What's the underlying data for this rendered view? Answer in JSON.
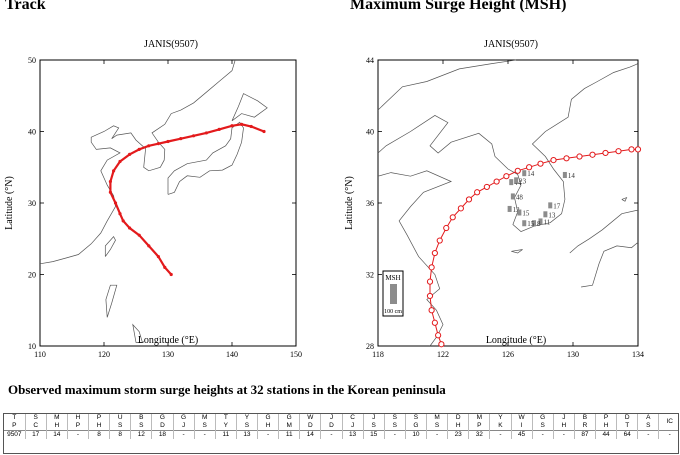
{
  "left_panel": {
    "heading": "Track",
    "inner_title": "JANIS(9507)",
    "xlabel": "Longitude (°E)",
    "ylabel": "Latitude (°N)",
    "xticks": [
      "110",
      "120",
      "130",
      "140",
      "150"
    ],
    "yticks": [
      "10",
      "20",
      "30",
      "40",
      "50"
    ]
  },
  "right_panel": {
    "heading": "Maximum Surge Height (MSH)",
    "inner_title": "JANIS(9507)",
    "xlabel": "Longitude (°E)",
    "ylabel": "Latitude (°N)",
    "xticks": [
      "118",
      "122",
      "126",
      "130",
      "134"
    ],
    "yticks": [
      "28",
      "32",
      "36",
      "40",
      "44"
    ],
    "legend_title": "MSH",
    "legend_scale": "100 cm"
  },
  "table_title": "Observed maximum storm surge heights at 32 stations in the Korean peninsula",
  "colors": {
    "track": "#e31a1c",
    "land_outline": "#555555",
    "surge_bar": "#8c8c8c"
  },
  "chart_data": [
    {
      "type": "line",
      "title": "JANIS(9507)",
      "xlabel": "Longitude (°E)",
      "ylabel": "Latitude (°N)",
      "xlim": [
        110,
        150
      ],
      "ylim": [
        10,
        50
      ],
      "series": [
        {
          "x": [
            130.5,
            129.5,
            128.5,
            127.0,
            125.5,
            124.0,
            123.0,
            122.5,
            121.8,
            121.0,
            121.0,
            121.5,
            122.5,
            124.0,
            125.5,
            127.0,
            128.5,
            130.0,
            132.0,
            134.0,
            136.0,
            138.0,
            140.0,
            141.5,
            143.0,
            145.0
          ],
          "y": [
            20.0,
            21.0,
            22.5,
            24.0,
            25.5,
            26.5,
            27.5,
            28.5,
            30.0,
            31.5,
            33.0,
            34.5,
            35.8,
            36.8,
            37.5,
            38.0,
            38.3,
            38.6,
            39.0,
            39.4,
            39.8,
            40.3,
            40.8,
            41.0,
            40.7,
            40.0
          ]
        }
      ]
    },
    {
      "type": "line",
      "title": "JANIS(9507)",
      "xlabel": "Longitude (°E)",
      "ylabel": "Latitude (°N)",
      "xlim": [
        118,
        134
      ],
      "ylim": [
        28,
        44
      ],
      "series": [
        {
          "x": [
            121.9,
            121.7,
            121.5,
            121.3,
            121.2,
            121.2,
            121.3,
            121.5,
            121.8,
            122.2,
            122.6,
            123.1,
            123.6,
            124.1,
            124.7,
            125.3,
            125.9,
            126.6,
            127.3,
            128.0,
            128.8,
            129.6,
            130.4,
            131.2,
            132.0,
            132.8,
            133.6,
            134.0
          ],
          "y": [
            28.1,
            28.6,
            29.3,
            30.0,
            30.8,
            31.6,
            32.4,
            33.2,
            33.9,
            34.6,
            35.2,
            35.7,
            36.2,
            36.6,
            36.9,
            37.2,
            37.5,
            37.8,
            38.0,
            38.2,
            38.4,
            38.5,
            38.6,
            38.7,
            38.8,
            38.9,
            39.0,
            39.0
          ]
        }
      ],
      "surge_labels": [
        {
          "text": "44",
          "x": 126.2,
          "y": 37.0
        },
        {
          "text": "14",
          "x": 127.0,
          "y": 37.5
        },
        {
          "text": "23",
          "x": 126.5,
          "y": 37.1
        },
        {
          "text": "48",
          "x": 126.3,
          "y": 36.2
        },
        {
          "text": "12",
          "x": 126.1,
          "y": 35.5
        },
        {
          "text": "15",
          "x": 126.7,
          "y": 35.3
        },
        {
          "text": "17",
          "x": 128.6,
          "y": 35.7
        },
        {
          "text": "13",
          "x": 128.3,
          "y": 35.2
        },
        {
          "text": "11",
          "x": 128.0,
          "y": 34.8
        },
        {
          "text": "8",
          "x": 127.6,
          "y": 34.7
        },
        {
          "text": "15",
          "x": 127.0,
          "y": 34.7
        },
        {
          "text": "14",
          "x": 129.5,
          "y": 37.4
        }
      ]
    },
    {
      "type": "table",
      "columns": [
        [
          "T",
          "P"
        ],
        [
          "S",
          "C"
        ],
        [
          "M",
          "H"
        ],
        [
          "H",
          "P"
        ],
        [
          "P",
          "H"
        ],
        [
          "U",
          "S"
        ],
        [
          "B",
          "S"
        ],
        [
          "G",
          "D"
        ],
        [
          "G",
          "J"
        ],
        [
          "M",
          "S"
        ],
        [
          "T",
          "Y"
        ],
        [
          "Y",
          "S"
        ],
        [
          "G",
          "H"
        ],
        [
          "G",
          "M"
        ],
        [
          "W",
          "D"
        ],
        [
          "J",
          "D"
        ],
        [
          "C",
          "J"
        ],
        [
          "J",
          "S"
        ],
        [
          "S",
          "S"
        ],
        [
          "S",
          "G"
        ],
        [
          "M",
          "S"
        ],
        [
          "D",
          "H"
        ],
        [
          "M",
          "P"
        ],
        [
          "Y",
          "K"
        ],
        [
          "W",
          "I"
        ],
        [
          "G",
          "S"
        ],
        [
          "J",
          "H"
        ],
        [
          "B",
          "R"
        ],
        [
          "P",
          "H"
        ],
        [
          "D",
          "T"
        ],
        [
          "A",
          "S"
        ],
        [
          "IC"
        ]
      ],
      "values": [
        "9507",
        "17",
        "14",
        "-",
        "8",
        "8",
        "12",
        "18",
        "-",
        "-",
        "11",
        "13",
        "-",
        "11",
        "14",
        "-",
        "13",
        "15",
        "-",
        "10",
        "-",
        "23",
        "32",
        "-",
        "45",
        "-",
        "-",
        "87",
        "44",
        "64",
        "-",
        "-"
      ]
    }
  ]
}
